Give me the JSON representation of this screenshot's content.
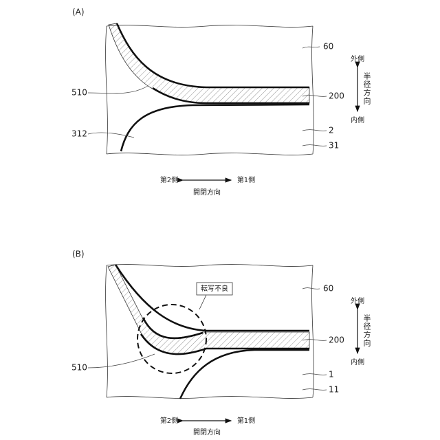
{
  "panels": [
    {
      "label": "(A)",
      "refs": [
        "60",
        "510",
        "200",
        "312",
        "2",
        "31"
      ],
      "radial": {
        "outer": "外側",
        "direction": "半径方向",
        "inner": "内側"
      },
      "axial": {
        "second": "第2側",
        "first": "第1側",
        "direction": "開閉方向"
      }
    },
    {
      "label": "(B)",
      "refs": [
        "60",
        "200",
        "510",
        "1",
        "11"
      ],
      "callout": "転写不良",
      "radial": {
        "outer": "外側",
        "direction": "半径方向",
        "inner": "内側"
      },
      "axial": {
        "second": "第2側",
        "first": "第1側",
        "direction": "開閉方向"
      }
    }
  ]
}
